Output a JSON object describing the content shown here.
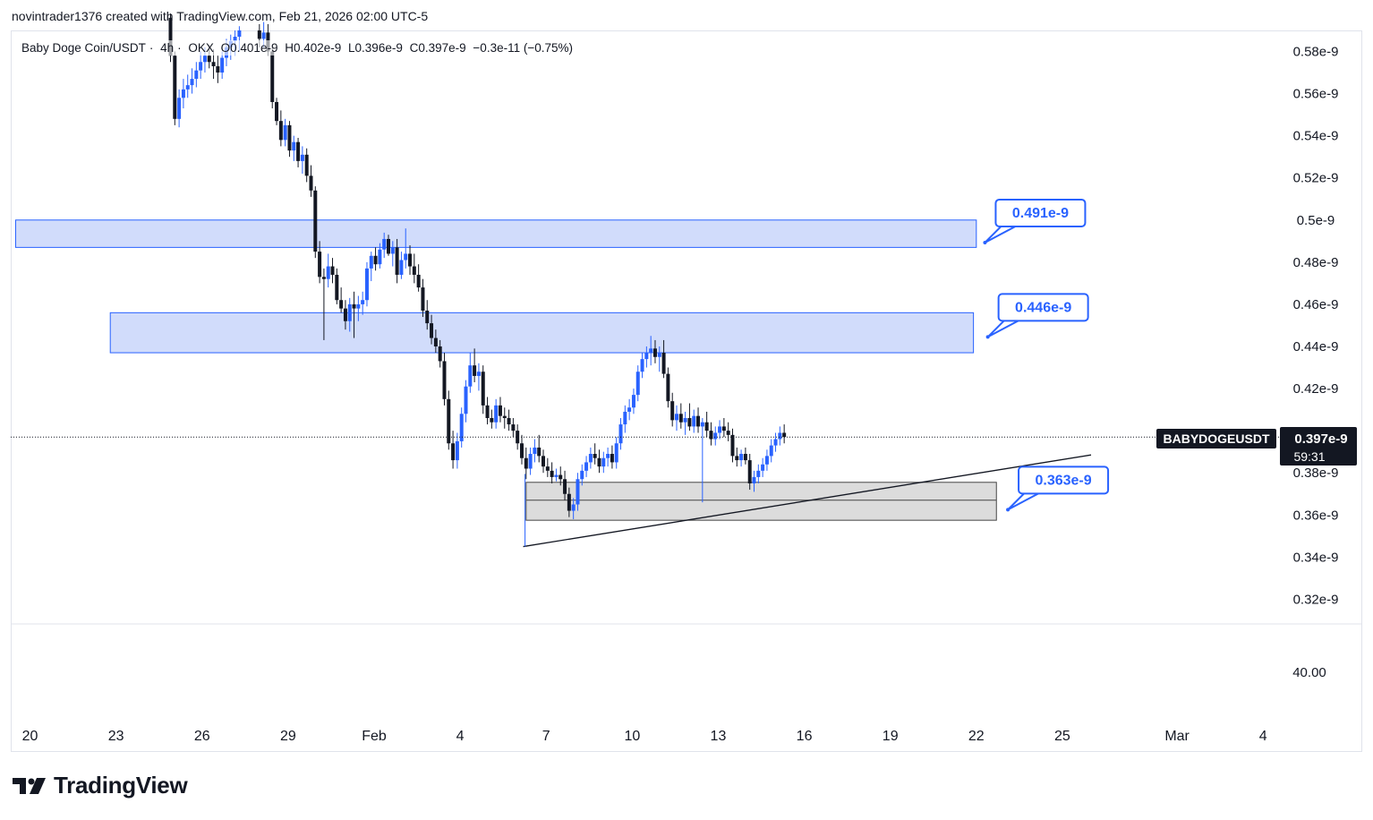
{
  "header": {
    "credit": "novintrader1376 created with TradingView.com, Feb 21, 2026 02:00 UTC-5"
  },
  "legend": {
    "symbol": "Baby Doge Coin/USDT",
    "interval": "4h",
    "exchange": "OKX",
    "open": "O0.401e-9",
    "high": "H0.402e-9",
    "low": "L0.396e-9",
    "close": "C0.397e-9",
    "change": "−0.3e-11 (−0.75%)"
  },
  "price_tag": {
    "symbol": "BABYDOGEUSDT",
    "price": "0.397e-9",
    "countdown": "59:31"
  },
  "logo": {
    "text": "TradingView"
  },
  "colors": {
    "up": "#2962ff",
    "down": "#131722",
    "zone_fill": "#d1dcfb",
    "zone_border": "#2962ff",
    "support_fill": "#d6d6d6",
    "support_border": "#444444",
    "callout_border": "#2962ff",
    "callout_text": "#2962ff"
  },
  "chart_data": {
    "type": "candlestick",
    "ylim": [
      0.308,
      0.592
    ],
    "y_ticks": [
      {
        "v": 0.58,
        "label": "0.58e-9"
      },
      {
        "v": 0.56,
        "label": "0.56e-9"
      },
      {
        "v": 0.54,
        "label": "0.54e-9"
      },
      {
        "v": 0.52,
        "label": "0.52e-9"
      },
      {
        "v": 0.5,
        "label": "0.5e-9"
      },
      {
        "v": 0.48,
        "label": "0.48e-9"
      },
      {
        "v": 0.46,
        "label": "0.46e-9"
      },
      {
        "v": 0.44,
        "label": "0.44e-9"
      },
      {
        "v": 0.42,
        "label": "0.42e-9"
      },
      {
        "v": 0.38,
        "label": "0.38e-9"
      },
      {
        "v": 0.36,
        "label": "0.36e-9"
      },
      {
        "v": 0.34,
        "label": "0.34e-9"
      },
      {
        "v": 0.32,
        "label": "0.32e-9"
      }
    ],
    "lower_pane_ticks": [
      {
        "label": "40.00"
      }
    ],
    "x_ticks": [
      {
        "t": 20,
        "label": "20"
      },
      {
        "t": 23,
        "label": "23"
      },
      {
        "t": 26,
        "label": "26"
      },
      {
        "t": 29,
        "label": "29"
      },
      {
        "t": 32,
        "label": "Feb"
      },
      {
        "t": 35,
        "label": "4"
      },
      {
        "t": 38,
        "label": "7"
      },
      {
        "t": 41,
        "label": "10"
      },
      {
        "t": 44,
        "label": "13"
      },
      {
        "t": 47,
        "label": "16"
      },
      {
        "t": 50,
        "label": "19"
      },
      {
        "t": 53,
        "label": "22"
      },
      {
        "t": 56,
        "label": "25"
      },
      {
        "t": 60,
        "label": "Mar"
      },
      {
        "t": 63,
        "label": "4"
      }
    ],
    "last_price": 0.397,
    "zones": [
      {
        "name": "resistance-upper",
        "t1": 19.5,
        "t2": 53,
        "top": 0.5,
        "bottom": 0.487,
        "kind": "blue"
      },
      {
        "name": "resistance-mid",
        "t1": 22.8,
        "t2": 52.9,
        "top": 0.456,
        "bottom": 0.437,
        "kind": "blue"
      },
      {
        "name": "support",
        "t1": 37.3,
        "t2": 53.7,
        "top": 0.3755,
        "bottom": 0.3575,
        "mid": 0.367,
        "kind": "grey"
      }
    ],
    "trendline": {
      "t1": 37.2,
      "v1": 0.345,
      "t2": 57.0,
      "v2": 0.3885
    },
    "callouts": [
      {
        "text": "0.491e-9",
        "t": 53.3,
        "v": 0.4893
      },
      {
        "text": "0.446e-9",
        "t": 53.4,
        "v": 0.4445
      },
      {
        "text": "0.363e-9",
        "t": 54.1,
        "v": 0.3625
      }
    ],
    "candles": [
      [
        24.9,
        0.596,
        0.598,
        0.575,
        0.578
      ],
      [
        25.05,
        0.578,
        0.58,
        0.545,
        0.548
      ],
      [
        25.2,
        0.548,
        0.562,
        0.544,
        0.558
      ],
      [
        25.35,
        0.558,
        0.567,
        0.553,
        0.562
      ],
      [
        25.5,
        0.562,
        0.569,
        0.558,
        0.564
      ],
      [
        25.65,
        0.564,
        0.572,
        0.56,
        0.567
      ],
      [
        25.8,
        0.567,
        0.575,
        0.563,
        0.571
      ],
      [
        25.95,
        0.571,
        0.58,
        0.567,
        0.575
      ],
      [
        26.1,
        0.575,
        0.582,
        0.57,
        0.578
      ],
      [
        26.25,
        0.578,
        0.583,
        0.572,
        0.575
      ],
      [
        26.4,
        0.575,
        0.581,
        0.567,
        0.573
      ],
      [
        26.55,
        0.573,
        0.578,
        0.565,
        0.57
      ],
      [
        26.7,
        0.57,
        0.58,
        0.567,
        0.577
      ],
      [
        26.85,
        0.577,
        0.586,
        0.573,
        0.582
      ],
      [
        27.0,
        0.582,
        0.588,
        0.576,
        0.585
      ],
      [
        27.15,
        0.585,
        0.59,
        0.578,
        0.587
      ],
      [
        27.3,
        0.587,
        0.592,
        0.58,
        0.59
      ],
      [
        28.0,
        0.59,
        0.593,
        0.582,
        0.586
      ],
      [
        28.15,
        0.586,
        0.594,
        0.582,
        0.589
      ],
      [
        28.3,
        0.589,
        0.593,
        0.578,
        0.58
      ],
      [
        28.45,
        0.58,
        0.583,
        0.553,
        0.556
      ],
      [
        28.6,
        0.556,
        0.558,
        0.545,
        0.547
      ],
      [
        28.75,
        0.547,
        0.552,
        0.535,
        0.538
      ],
      [
        28.9,
        0.538,
        0.548,
        0.535,
        0.545
      ],
      [
        29.05,
        0.545,
        0.547,
        0.53,
        0.533
      ],
      [
        29.2,
        0.533,
        0.54,
        0.528,
        0.537
      ],
      [
        29.35,
        0.537,
        0.539,
        0.525,
        0.528
      ],
      [
        29.5,
        0.528,
        0.535,
        0.522,
        0.531
      ],
      [
        29.65,
        0.531,
        0.534,
        0.518,
        0.521
      ],
      [
        29.8,
        0.521,
        0.526,
        0.511,
        0.514
      ],
      [
        29.95,
        0.514,
        0.516,
        0.482,
        0.485
      ],
      [
        30.1,
        0.485,
        0.49,
        0.47,
        0.473
      ],
      [
        30.25,
        0.473,
        0.477,
        0.443,
        0.472
      ],
      [
        30.4,
        0.472,
        0.484,
        0.468,
        0.478
      ],
      [
        30.55,
        0.478,
        0.482,
        0.47,
        0.474
      ],
      [
        30.7,
        0.474,
        0.477,
        0.46,
        0.462
      ],
      [
        30.85,
        0.462,
        0.468,
        0.456,
        0.458
      ],
      [
        31.0,
        0.458,
        0.462,
        0.448,
        0.452
      ],
      [
        31.15,
        0.452,
        0.463,
        0.447,
        0.46
      ],
      [
        31.3,
        0.46,
        0.466,
        0.444,
        0.458
      ],
      [
        31.45,
        0.458,
        0.464,
        0.452,
        0.46
      ],
      [
        31.6,
        0.46,
        0.466,
        0.455,
        0.462
      ],
      [
        31.75,
        0.462,
        0.48,
        0.459,
        0.477
      ],
      [
        31.9,
        0.477,
        0.485,
        0.471,
        0.483
      ],
      [
        32.05,
        0.483,
        0.487,
        0.476,
        0.479
      ],
      [
        32.2,
        0.479,
        0.489,
        0.477,
        0.486
      ],
      [
        32.35,
        0.486,
        0.494,
        0.482,
        0.491
      ],
      [
        32.5,
        0.491,
        0.493,
        0.483,
        0.484
      ],
      [
        32.65,
        0.484,
        0.49,
        0.478,
        0.487
      ],
      [
        32.8,
        0.487,
        0.491,
        0.47,
        0.474
      ],
      [
        32.95,
        0.474,
        0.485,
        0.472,
        0.481
      ],
      [
        33.1,
        0.481,
        0.496,
        0.477,
        0.484
      ],
      [
        33.25,
        0.484,
        0.488,
        0.474,
        0.478
      ],
      [
        33.4,
        0.478,
        0.484,
        0.47,
        0.474
      ],
      [
        33.55,
        0.474,
        0.479,
        0.466,
        0.468
      ],
      [
        33.7,
        0.468,
        0.472,
        0.454,
        0.457
      ],
      [
        33.85,
        0.457,
        0.462,
        0.448,
        0.451
      ],
      [
        34.0,
        0.451,
        0.455,
        0.441,
        0.444
      ],
      [
        34.15,
        0.444,
        0.448,
        0.437,
        0.44
      ],
      [
        34.3,
        0.44,
        0.443,
        0.43,
        0.433
      ],
      [
        34.45,
        0.433,
        0.437,
        0.412,
        0.415
      ],
      [
        34.6,
        0.415,
        0.419,
        0.391,
        0.394
      ],
      [
        34.75,
        0.394,
        0.4,
        0.382,
        0.386
      ],
      [
        34.9,
        0.386,
        0.399,
        0.382,
        0.395
      ],
      [
        35.05,
        0.395,
        0.411,
        0.392,
        0.408
      ],
      [
        35.2,
        0.408,
        0.424,
        0.404,
        0.421
      ],
      [
        35.35,
        0.421,
        0.437,
        0.418,
        0.431
      ],
      [
        35.5,
        0.431,
        0.439,
        0.423,
        0.426
      ],
      [
        35.65,
        0.426,
        0.432,
        0.419,
        0.428
      ],
      [
        35.8,
        0.428,
        0.431,
        0.408,
        0.412
      ],
      [
        35.95,
        0.412,
        0.416,
        0.403,
        0.406
      ],
      [
        36.1,
        0.406,
        0.41,
        0.401,
        0.404
      ],
      [
        36.25,
        0.404,
        0.415,
        0.401,
        0.412
      ],
      [
        36.4,
        0.412,
        0.416,
        0.404,
        0.407
      ],
      [
        36.55,
        0.407,
        0.411,
        0.401,
        0.406
      ],
      [
        36.7,
        0.406,
        0.41,
        0.4,
        0.403
      ],
      [
        36.85,
        0.403,
        0.406,
        0.397,
        0.4
      ],
      [
        37.0,
        0.4,
        0.403,
        0.391,
        0.394
      ],
      [
        37.15,
        0.394,
        0.398,
        0.384,
        0.387
      ],
      [
        37.3,
        0.387,
        0.392,
        0.377,
        0.382
      ],
      [
        37.45,
        0.382,
        0.392,
        0.379,
        0.389
      ],
      [
        37.6,
        0.389,
        0.396,
        0.385,
        0.392
      ],
      [
        37.75,
        0.392,
        0.398,
        0.385,
        0.388
      ],
      [
        37.9,
        0.388,
        0.391,
        0.38,
        0.383
      ],
      [
        38.05,
        0.383,
        0.387,
        0.378,
        0.381
      ],
      [
        38.2,
        0.381,
        0.385,
        0.375,
        0.378
      ],
      [
        38.35,
        0.378,
        0.382,
        0.376,
        0.379
      ],
      [
        38.5,
        0.379,
        0.383,
        0.374,
        0.377
      ],
      [
        38.65,
        0.377,
        0.381,
        0.367,
        0.37
      ],
      [
        38.8,
        0.37,
        0.373,
        0.359,
        0.362
      ],
      [
        38.95,
        0.362,
        0.368,
        0.358,
        0.365
      ],
      [
        39.1,
        0.365,
        0.38,
        0.362,
        0.377
      ],
      [
        39.25,
        0.377,
        0.384,
        0.374,
        0.381
      ],
      [
        39.4,
        0.381,
        0.388,
        0.378,
        0.385
      ],
      [
        39.55,
        0.385,
        0.392,
        0.382,
        0.389
      ],
      [
        39.7,
        0.389,
        0.394,
        0.384,
        0.387
      ],
      [
        39.85,
        0.387,
        0.391,
        0.38,
        0.383
      ],
      [
        40.0,
        0.383,
        0.39,
        0.38,
        0.387
      ],
      [
        40.15,
        0.387,
        0.392,
        0.383,
        0.389
      ],
      [
        40.3,
        0.389,
        0.393,
        0.382,
        0.385
      ],
      [
        40.45,
        0.385,
        0.397,
        0.382,
        0.394
      ],
      [
        40.6,
        0.394,
        0.406,
        0.391,
        0.403
      ],
      [
        40.75,
        0.403,
        0.412,
        0.399,
        0.409
      ],
      [
        40.9,
        0.409,
        0.415,
        0.405,
        0.411
      ],
      [
        41.05,
        0.411,
        0.42,
        0.408,
        0.417
      ],
      [
        41.2,
        0.417,
        0.431,
        0.414,
        0.428
      ],
      [
        41.35,
        0.428,
        0.437,
        0.425,
        0.434
      ],
      [
        41.5,
        0.434,
        0.44,
        0.43,
        0.437
      ],
      [
        41.65,
        0.437,
        0.445,
        0.431,
        0.439
      ],
      [
        41.8,
        0.439,
        0.443,
        0.432,
        0.435
      ],
      [
        41.95,
        0.435,
        0.44,
        0.428,
        0.437
      ],
      [
        42.1,
        0.437,
        0.443,
        0.425,
        0.427
      ],
      [
        42.25,
        0.427,
        0.43,
        0.411,
        0.414
      ],
      [
        42.4,
        0.414,
        0.418,
        0.402,
        0.405
      ],
      [
        42.55,
        0.405,
        0.412,
        0.4,
        0.408
      ],
      [
        42.7,
        0.408,
        0.413,
        0.401,
        0.404
      ],
      [
        42.85,
        0.404,
        0.409,
        0.398,
        0.406
      ],
      [
        43.0,
        0.406,
        0.413,
        0.4,
        0.402
      ],
      [
        43.15,
        0.402,
        0.41,
        0.399,
        0.407
      ],
      [
        43.3,
        0.407,
        0.411,
        0.399,
        0.402
      ],
      [
        43.45,
        0.402,
        0.406,
        0.366,
        0.404
      ],
      [
        43.6,
        0.404,
        0.409,
        0.397,
        0.4
      ],
      [
        43.75,
        0.4,
        0.404,
        0.393,
        0.396
      ],
      [
        43.9,
        0.396,
        0.402,
        0.393,
        0.399
      ],
      [
        44.05,
        0.399,
        0.405,
        0.396,
        0.402
      ],
      [
        44.2,
        0.402,
        0.406,
        0.397,
        0.4
      ],
      [
        44.35,
        0.4,
        0.404,
        0.395,
        0.398
      ],
      [
        44.5,
        0.398,
        0.401,
        0.385,
        0.388
      ],
      [
        44.65,
        0.388,
        0.392,
        0.383,
        0.386
      ],
      [
        44.8,
        0.386,
        0.391,
        0.383,
        0.389
      ],
      [
        44.95,
        0.389,
        0.392,
        0.384,
        0.386
      ],
      [
        45.1,
        0.386,
        0.389,
        0.372,
        0.375
      ],
      [
        45.25,
        0.375,
        0.381,
        0.371,
        0.378
      ],
      [
        45.4,
        0.378,
        0.384,
        0.375,
        0.381
      ],
      [
        45.55,
        0.381,
        0.387,
        0.378,
        0.384
      ],
      [
        45.7,
        0.384,
        0.391,
        0.381,
        0.388
      ],
      [
        45.85,
        0.388,
        0.396,
        0.385,
        0.393
      ],
      [
        46.0,
        0.393,
        0.399,
        0.39,
        0.396
      ],
      [
        46.15,
        0.396,
        0.402,
        0.393,
        0.399
      ],
      [
        46.3,
        0.399,
        0.403,
        0.394,
        0.397
      ]
    ]
  }
}
